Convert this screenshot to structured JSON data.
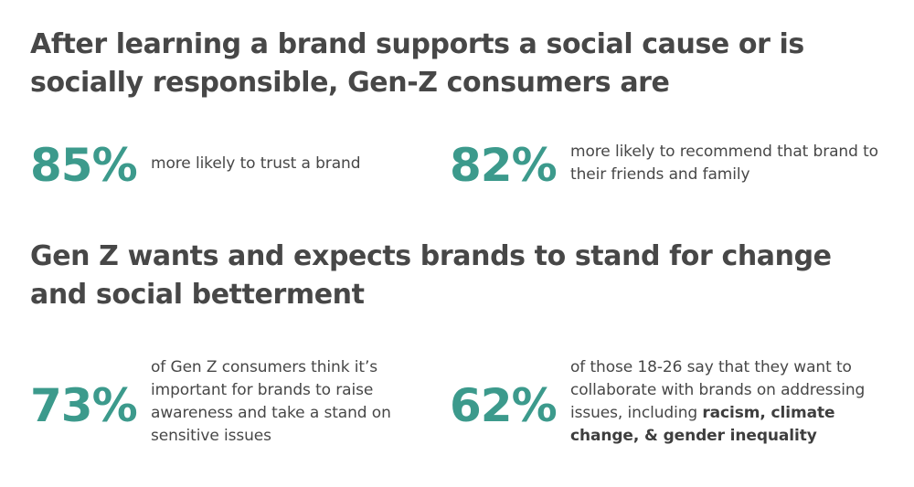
{
  "section1": {
    "heading": "After learning a brand supports a social cause or is socially responsible, Gen-Z consumers are",
    "stats": [
      {
        "value": "85%",
        "text": "more likely to trust a brand"
      },
      {
        "value": "82%",
        "text": "more likely to recommend that brand to their friends and family"
      }
    ]
  },
  "section2": {
    "heading": "Gen Z wants and expects brands to stand for change and social betterment",
    "stats": [
      {
        "value": "73%",
        "text": "of Gen Z consumers think it’s important for brands to raise awareness and take a stand on sensitive issues"
      },
      {
        "value": "62%",
        "text_plain": "of those 18-26 say that they want to collaborate with brands on addressing issues, including",
        "text_bold": "racism, climate change, & gender inequality"
      }
    ]
  },
  "colors": {
    "accent": "#3c9a8c",
    "text": "#474747",
    "background": "#ffffff"
  }
}
